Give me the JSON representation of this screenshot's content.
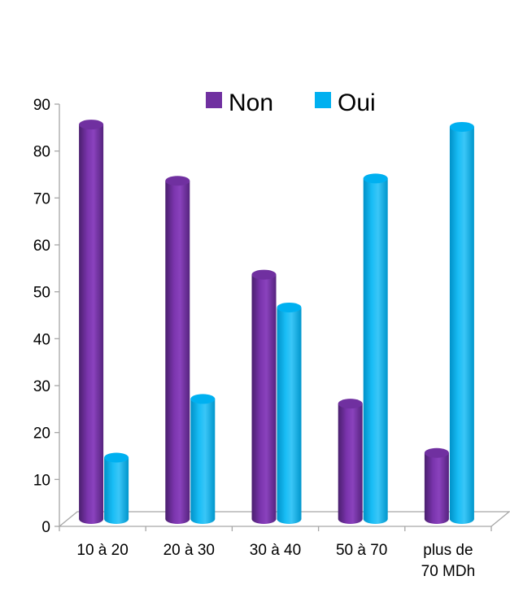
{
  "chart_data": {
    "type": "bar",
    "categories": [
      "10 à 20",
      "20 à 30",
      "30 à 40",
      "50 à 70",
      "plus de 70 MDh"
    ],
    "category_lines": [
      [
        "10 à 20"
      ],
      [
        "20 à 30"
      ],
      [
        "30 à 40"
      ],
      [
        "50 à 70"
      ],
      [
        "plus de",
        "70 MDh"
      ]
    ],
    "series": [
      {
        "name": "Non",
        "values": [
          86,
          74,
          54,
          26.5,
          16
        ],
        "color": "#7030A0"
      },
      {
        "name": "Oui",
        "values": [
          15,
          27.5,
          47,
          74.5,
          85.5
        ],
        "color": "#00B0F0"
      }
    ],
    "ylim": [
      0,
      90
    ],
    "yticks": [
      "0",
      "10",
      "20",
      "30",
      "40",
      "50",
      "60",
      "70",
      "80",
      "90"
    ],
    "legend_position": "top",
    "grid": false,
    "style": "3d-cylinder"
  }
}
